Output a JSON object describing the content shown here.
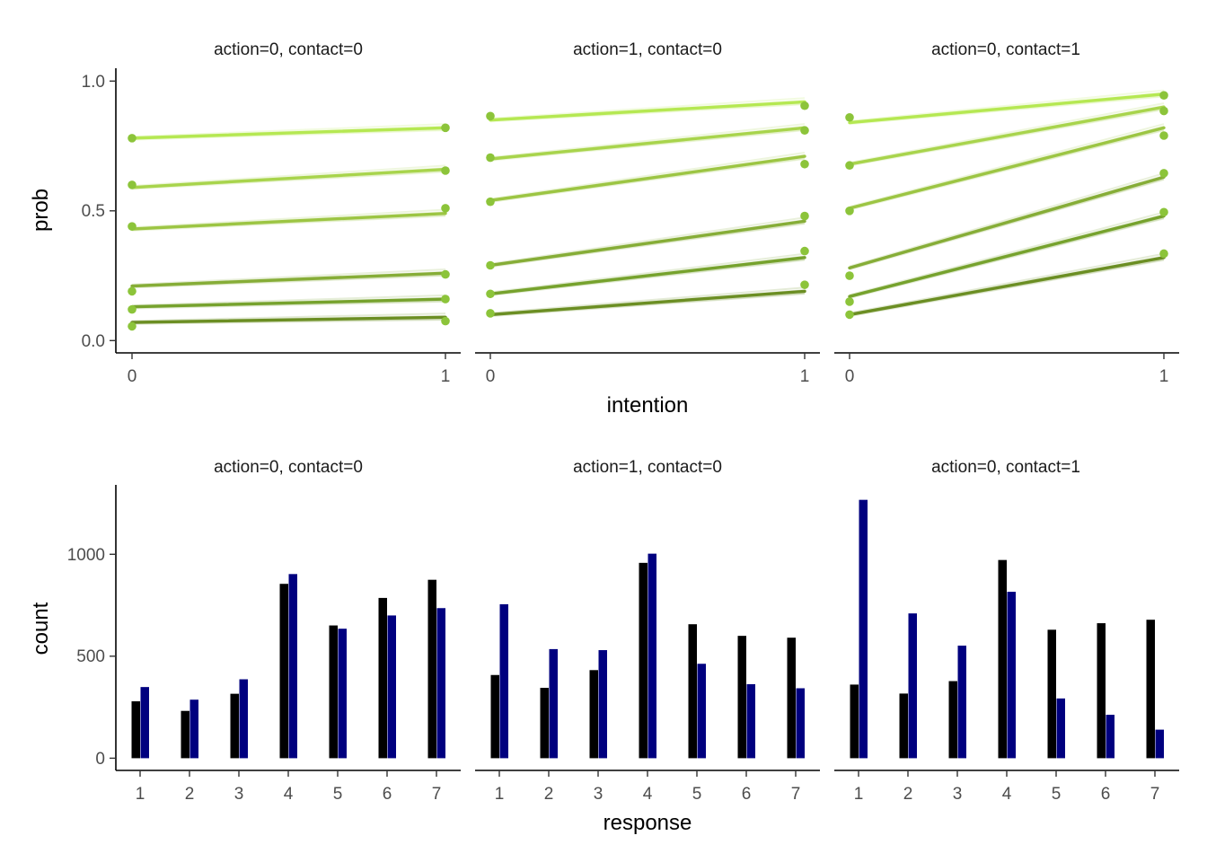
{
  "colors": {
    "prob_lines_by_threshold": [
      "#6b8e23",
      "#76a22d",
      "#86ad37",
      "#9cc543",
      "#a8d44c",
      "#b5e852"
    ],
    "points": "#8cc43a",
    "bar_dark": "#000000",
    "bar_blue": "#00007f"
  },
  "chart_data": [
    {
      "type": "line",
      "xlabel": "intention",
      "ylabel": "prob",
      "x": [
        0,
        1
      ],
      "x_ticks": [
        "0",
        "1"
      ],
      "y_ticks": [
        "0.0",
        "0.5",
        "1.0"
      ],
      "ylim": [
        -0.05,
        1.05
      ],
      "grid": false,
      "panels": [
        {
          "strip": "action=0, contact=0",
          "lines": [
            [
              0.07,
              0.09
            ],
            [
              0.13,
              0.16
            ],
            [
              0.21,
              0.26
            ],
            [
              0.43,
              0.49
            ],
            [
              0.59,
              0.66
            ],
            [
              0.78,
              0.82
            ]
          ],
          "points": [
            [
              0.055,
              0.075
            ],
            [
              0.12,
              0.16
            ],
            [
              0.19,
              0.255
            ],
            [
              0.44,
              0.51
            ],
            [
              0.6,
              0.655
            ],
            [
              0.78,
              0.82
            ]
          ]
        },
        {
          "strip": "action=1, contact=0",
          "lines": [
            [
              0.1,
              0.19
            ],
            [
              0.18,
              0.32
            ],
            [
              0.29,
              0.46
            ],
            [
              0.54,
              0.71
            ],
            [
              0.7,
              0.82
            ],
            [
              0.85,
              0.92
            ]
          ],
          "points": [
            [
              0.105,
              0.215
            ],
            [
              0.18,
              0.345
            ],
            [
              0.29,
              0.48
            ],
            [
              0.535,
              0.68
            ],
            [
              0.705,
              0.81
            ],
            [
              0.865,
              0.905
            ]
          ]
        },
        {
          "strip": "action=0, contact=1",
          "lines": [
            [
              0.1,
              0.32
            ],
            [
              0.17,
              0.48
            ],
            [
              0.28,
              0.63
            ],
            [
              0.51,
              0.82
            ],
            [
              0.68,
              0.9
            ],
            [
              0.84,
              0.95
            ]
          ],
          "points": [
            [
              0.1,
              0.335
            ],
            [
              0.15,
              0.495
            ],
            [
              0.25,
              0.645
            ],
            [
              0.5,
              0.79
            ],
            [
              0.675,
              0.885
            ],
            [
              0.86,
              0.945
            ]
          ]
        }
      ]
    },
    {
      "type": "bar",
      "xlabel": "response",
      "ylabel": "count",
      "categories": [
        "1",
        "2",
        "3",
        "4",
        "5",
        "6",
        "7"
      ],
      "y_ticks": [
        "0",
        "500",
        "1000"
      ],
      "ylim": [
        -60,
        1340
      ],
      "grid": false,
      "panels": [
        {
          "strip": "action=0, contact=0",
          "series": [
            {
              "values": [
                279,
                232,
                316,
                855,
                651,
                786,
                875
              ]
            },
            {
              "values": [
                349,
                287,
                387,
                903,
                635,
                700,
                736
              ]
            }
          ]
        },
        {
          "strip": "action=1, contact=0",
          "series": [
            {
              "values": [
                408,
                345,
                432,
                958,
                657,
                600,
                591
              ]
            },
            {
              "values": [
                755,
                535,
                530,
                1003,
                463,
                363,
                343
              ]
            }
          ]
        },
        {
          "strip": "action=0, contact=1",
          "series": [
            {
              "values": [
                361,
                317,
                378,
                972,
                630,
                662,
                679
              ]
            },
            {
              "values": [
                1267,
                710,
                552,
                816,
                293,
                213,
                140
              ]
            }
          ]
        }
      ]
    }
  ]
}
